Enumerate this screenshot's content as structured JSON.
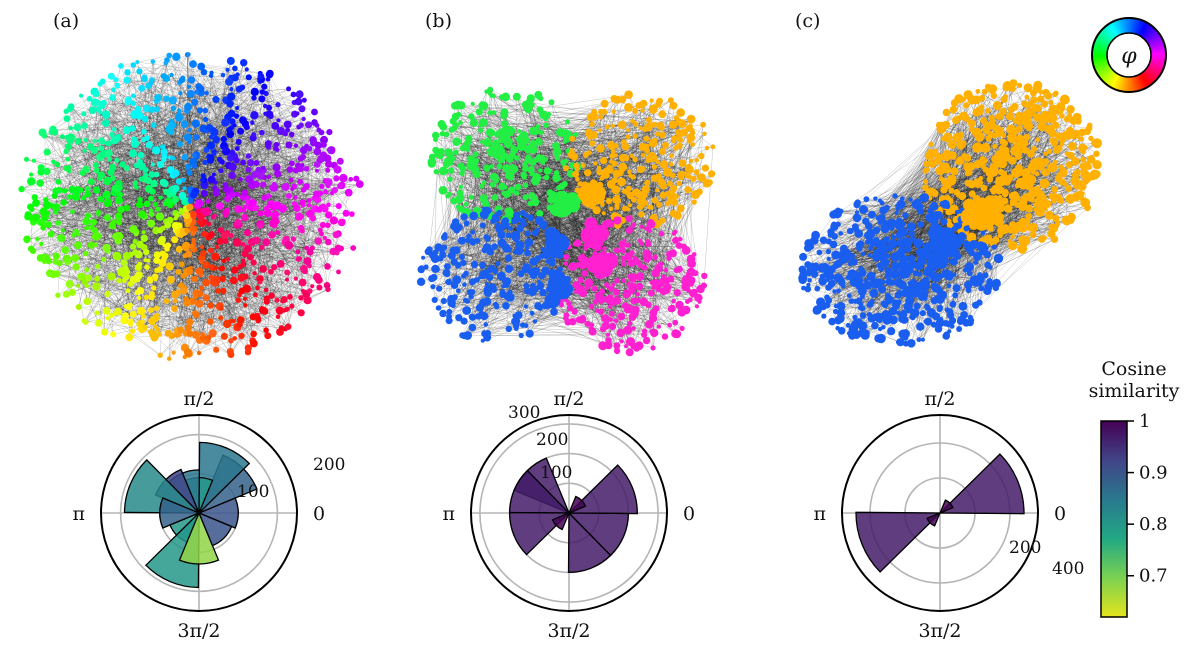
{
  "panels": [
    {
      "label": "(a)",
      "network": {
        "description_colors": [
          "#ff00a8",
          "#ff2020",
          "#ff7f00",
          "#ffb000",
          "#f0e000",
          "#a8ff00",
          "#30ff30",
          "#00ff9c",
          "#00e8e8",
          "#0090ff",
          "#2030e0",
          "#6000ff",
          "#b000ff"
        ]
      },
      "polar": {
        "angle_labels": [
          "π/2",
          "π",
          "3π/2",
          "0"
        ],
        "radial_labels": [
          "100",
          "200"
        ],
        "bars": [
          {
            "angle_deg": 0,
            "value": 100,
            "similarity": 0.9
          },
          {
            "angle_deg": 45,
            "value": 160,
            "similarity": 0.88
          },
          {
            "angle_deg": 67,
            "value": 180,
            "similarity": 0.85
          },
          {
            "angle_deg": 90,
            "value": 90,
            "similarity": 0.8
          },
          {
            "angle_deg": 112,
            "value": 110,
            "similarity": 0.85
          },
          {
            "angle_deg": 135,
            "value": 120,
            "similarity": 0.92
          },
          {
            "angle_deg": 157,
            "value": 190,
            "similarity": 0.82
          },
          {
            "angle_deg": 180,
            "value": 100,
            "similarity": 0.88
          },
          {
            "angle_deg": 225,
            "value": 80,
            "similarity": 0.8
          },
          {
            "angle_deg": 247,
            "value": 190,
            "similarity": 0.8
          },
          {
            "angle_deg": 270,
            "value": 130,
            "similarity": 0.68
          },
          {
            "angle_deg": 315,
            "value": 90,
            "similarity": 0.9
          }
        ],
        "rmax": 250
      }
    },
    {
      "label": "(b)",
      "network": {
        "description_colors": [
          "#22ee44",
          "#ffb000",
          "#1a5ef0",
          "#ff20d0"
        ]
      },
      "polar": {
        "angle_labels": [
          "π/2",
          "π",
          "3π/2",
          "0"
        ],
        "radial_labels": [
          "100",
          "200",
          "300"
        ],
        "bars": [
          {
            "angle_deg": 22,
            "value": 230,
            "similarity": 0.97
          },
          {
            "angle_deg": 45,
            "value": 60,
            "similarity": 1.0
          },
          {
            "angle_deg": 135,
            "value": 200,
            "similarity": 0.97
          },
          {
            "angle_deg": 157,
            "value": 200,
            "similarity": 0.97
          },
          {
            "angle_deg": 202,
            "value": 200,
            "similarity": 0.97
          },
          {
            "angle_deg": 225,
            "value": 60,
            "similarity": 1.0
          },
          {
            "angle_deg": 292,
            "value": 200,
            "similarity": 0.97
          },
          {
            "angle_deg": 337,
            "value": 200,
            "similarity": 0.97
          }
        ],
        "rmax": 330
      }
    },
    {
      "label": "(c)",
      "network": {
        "description_colors": [
          "#ffb000",
          "#1a5ef0"
        ]
      },
      "polar": {
        "angle_labels": [
          "π/2",
          "π",
          "3π/2",
          "0"
        ],
        "radial_labels": [
          "200",
          "400"
        ],
        "bars": [
          {
            "angle_deg": 22,
            "value": 480,
            "similarity": 0.97
          },
          {
            "angle_deg": 45,
            "value": 80,
            "similarity": 1.0
          },
          {
            "angle_deg": 202,
            "value": 480,
            "similarity": 0.97
          },
          {
            "angle_deg": 225,
            "value": 80,
            "similarity": 1.0
          }
        ],
        "rmax": 560
      }
    }
  ],
  "colorwheel": {
    "symbol": "φ"
  },
  "colorbar": {
    "title_line1": "Cosine",
    "title_line2": "similarity",
    "ticks": [
      "1",
      "0.9",
      "0.8",
      "0.7"
    ],
    "tick_values": [
      1,
      0.9,
      0.8,
      0.7
    ],
    "vmin": 0.62,
    "vmax": 1.0
  }
}
